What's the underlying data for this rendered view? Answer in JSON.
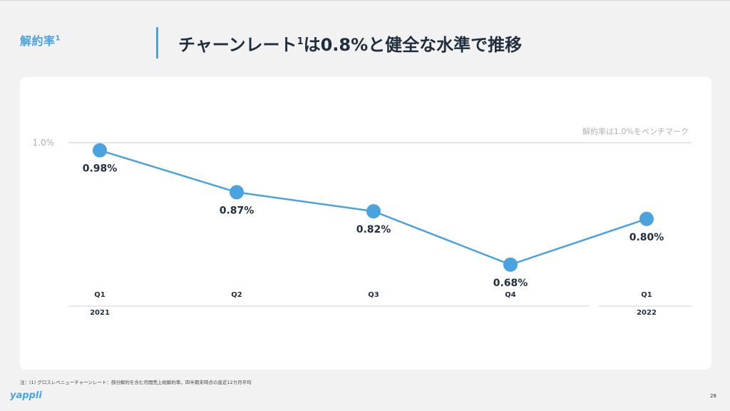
{
  "header": {
    "section_label": "解約率",
    "section_sup": "1",
    "title_prefix": "チャーンレート",
    "title_sup": "1",
    "title_suffix": "は0.8%と健全な水準で推移"
  },
  "chart_data": {
    "type": "line",
    "categories": [
      "Q1",
      "Q2",
      "Q3",
      "Q4",
      "Q1"
    ],
    "years": [
      {
        "label": "2021",
        "span": [
          0,
          3
        ]
      },
      {
        "label": "2022",
        "span": [
          4,
          4
        ]
      }
    ],
    "series": [
      {
        "name": "解約率",
        "values": [
          0.98,
          0.87,
          0.82,
          0.68,
          0.8
        ],
        "labels": [
          "0.98%",
          "0.87%",
          "0.82%",
          "0.68%",
          "0.80%"
        ]
      }
    ],
    "benchmark": {
      "value": 1.0,
      "tick_label": "1.0%",
      "label": "解約率は1.0%をベンチマーク"
    },
    "ylim": [
      0.5,
      1.0
    ],
    "grid": false,
    "colors": {
      "line": "#4aa3df",
      "benchmark": "#c8c8c8",
      "axis_text": "#b0b0b0",
      "text": "#1f2d3d"
    }
  },
  "footer": {
    "note": "注：(1) グロスレベニューチャーンレート：部分解約を含む月間売上総解約率。四半期末時点の直近12カ月平均",
    "logo": "yappli",
    "page_number": "28"
  }
}
